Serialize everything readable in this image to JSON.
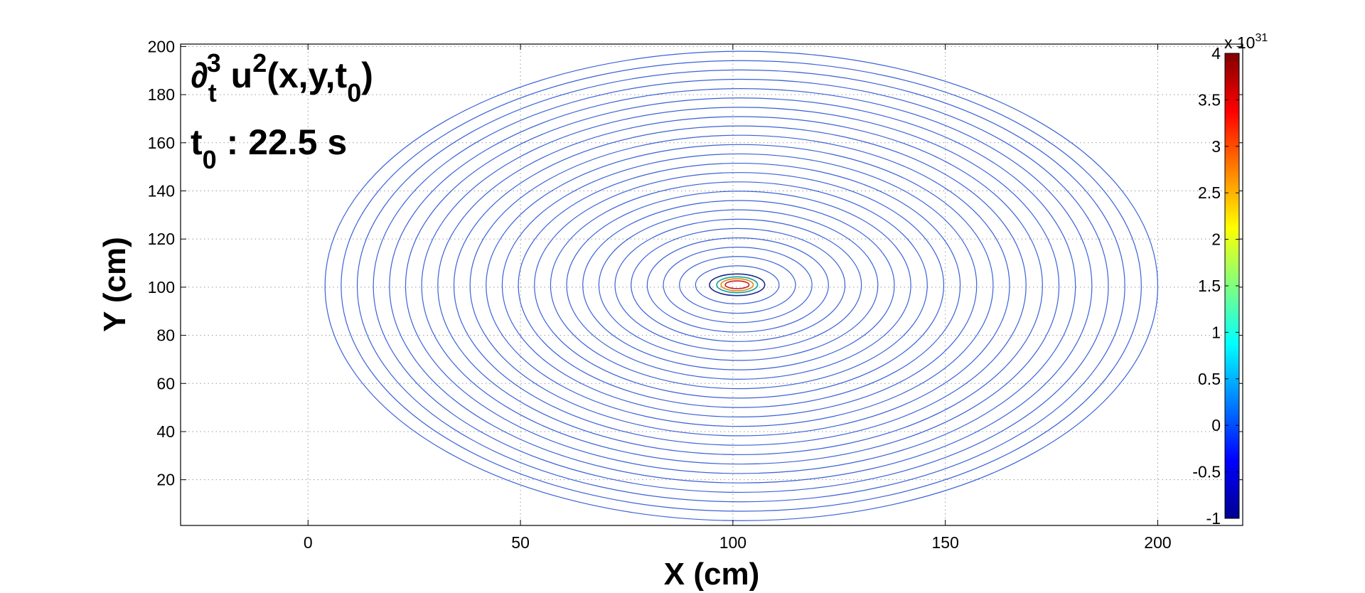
{
  "chart_data": {
    "type": "contour",
    "title_lines": [
      {
        "parts": [
          {
            "text": "∂",
            "style": "italic"
          },
          {
            "text": "t",
            "style": "sub"
          },
          {
            "text": "3",
            "style": "sup"
          },
          {
            "text": " u"
          },
          {
            "text": "2",
            "style": "sup"
          },
          {
            "text": "(x,y,t"
          },
          {
            "text": "0",
            "style": "sub"
          },
          {
            "text": ")"
          }
        ]
      },
      {
        "parts": [
          {
            "text": "t"
          },
          {
            "text": "0",
            "style": "sub"
          },
          {
            "text": " : 22.5 s"
          }
        ]
      }
    ],
    "xlabel": "X (cm)",
    "ylabel": "Y (cm)",
    "xlim": [
      -30,
      220
    ],
    "ylim": [
      1,
      201
    ],
    "xticks": [
      0,
      50,
      100,
      150,
      200
    ],
    "yticks": [
      20,
      40,
      60,
      80,
      100,
      120,
      140,
      160,
      180,
      200
    ],
    "grid": true,
    "grid_style": "dotted",
    "center": {
      "x": 101,
      "y": 101
    },
    "outer_contour": {
      "x_min": 4,
      "x_max": 200,
      "y_min": 3,
      "y_max": 198
    },
    "blue_contour_count": 24,
    "contour_color": "#3a62d8",
    "center_contours": [
      {
        "rx": 6.5,
        "ry": 4.5,
        "color": "#1e2a8a"
      },
      {
        "rx": 4.8,
        "ry": 3.3,
        "color": "#0aa3a0"
      },
      {
        "rx": 3.8,
        "ry": 2.5,
        "color": "#e08a12"
      },
      {
        "rx": 2.8,
        "ry": 1.6,
        "color": "#d11818"
      }
    ],
    "colorbar": {
      "min": -1,
      "max": 4,
      "ticks": [
        -1,
        -0.5,
        0,
        0.5,
        1,
        1.5,
        2,
        2.5,
        3,
        3.5,
        4
      ],
      "tick_labels": [
        "-1",
        "-0.5",
        "0",
        "0.5",
        "1",
        "1.5",
        "2",
        "2.5",
        "3",
        "3.5",
        "4"
      ],
      "exponent_label": "x 10",
      "exponent_power": "31",
      "colormap": [
        "#00008f",
        "#0000ff",
        "#0080ff",
        "#00ffff",
        "#80ff80",
        "#ffff00",
        "#ff8000",
        "#ff0000",
        "#800000"
      ]
    }
  }
}
